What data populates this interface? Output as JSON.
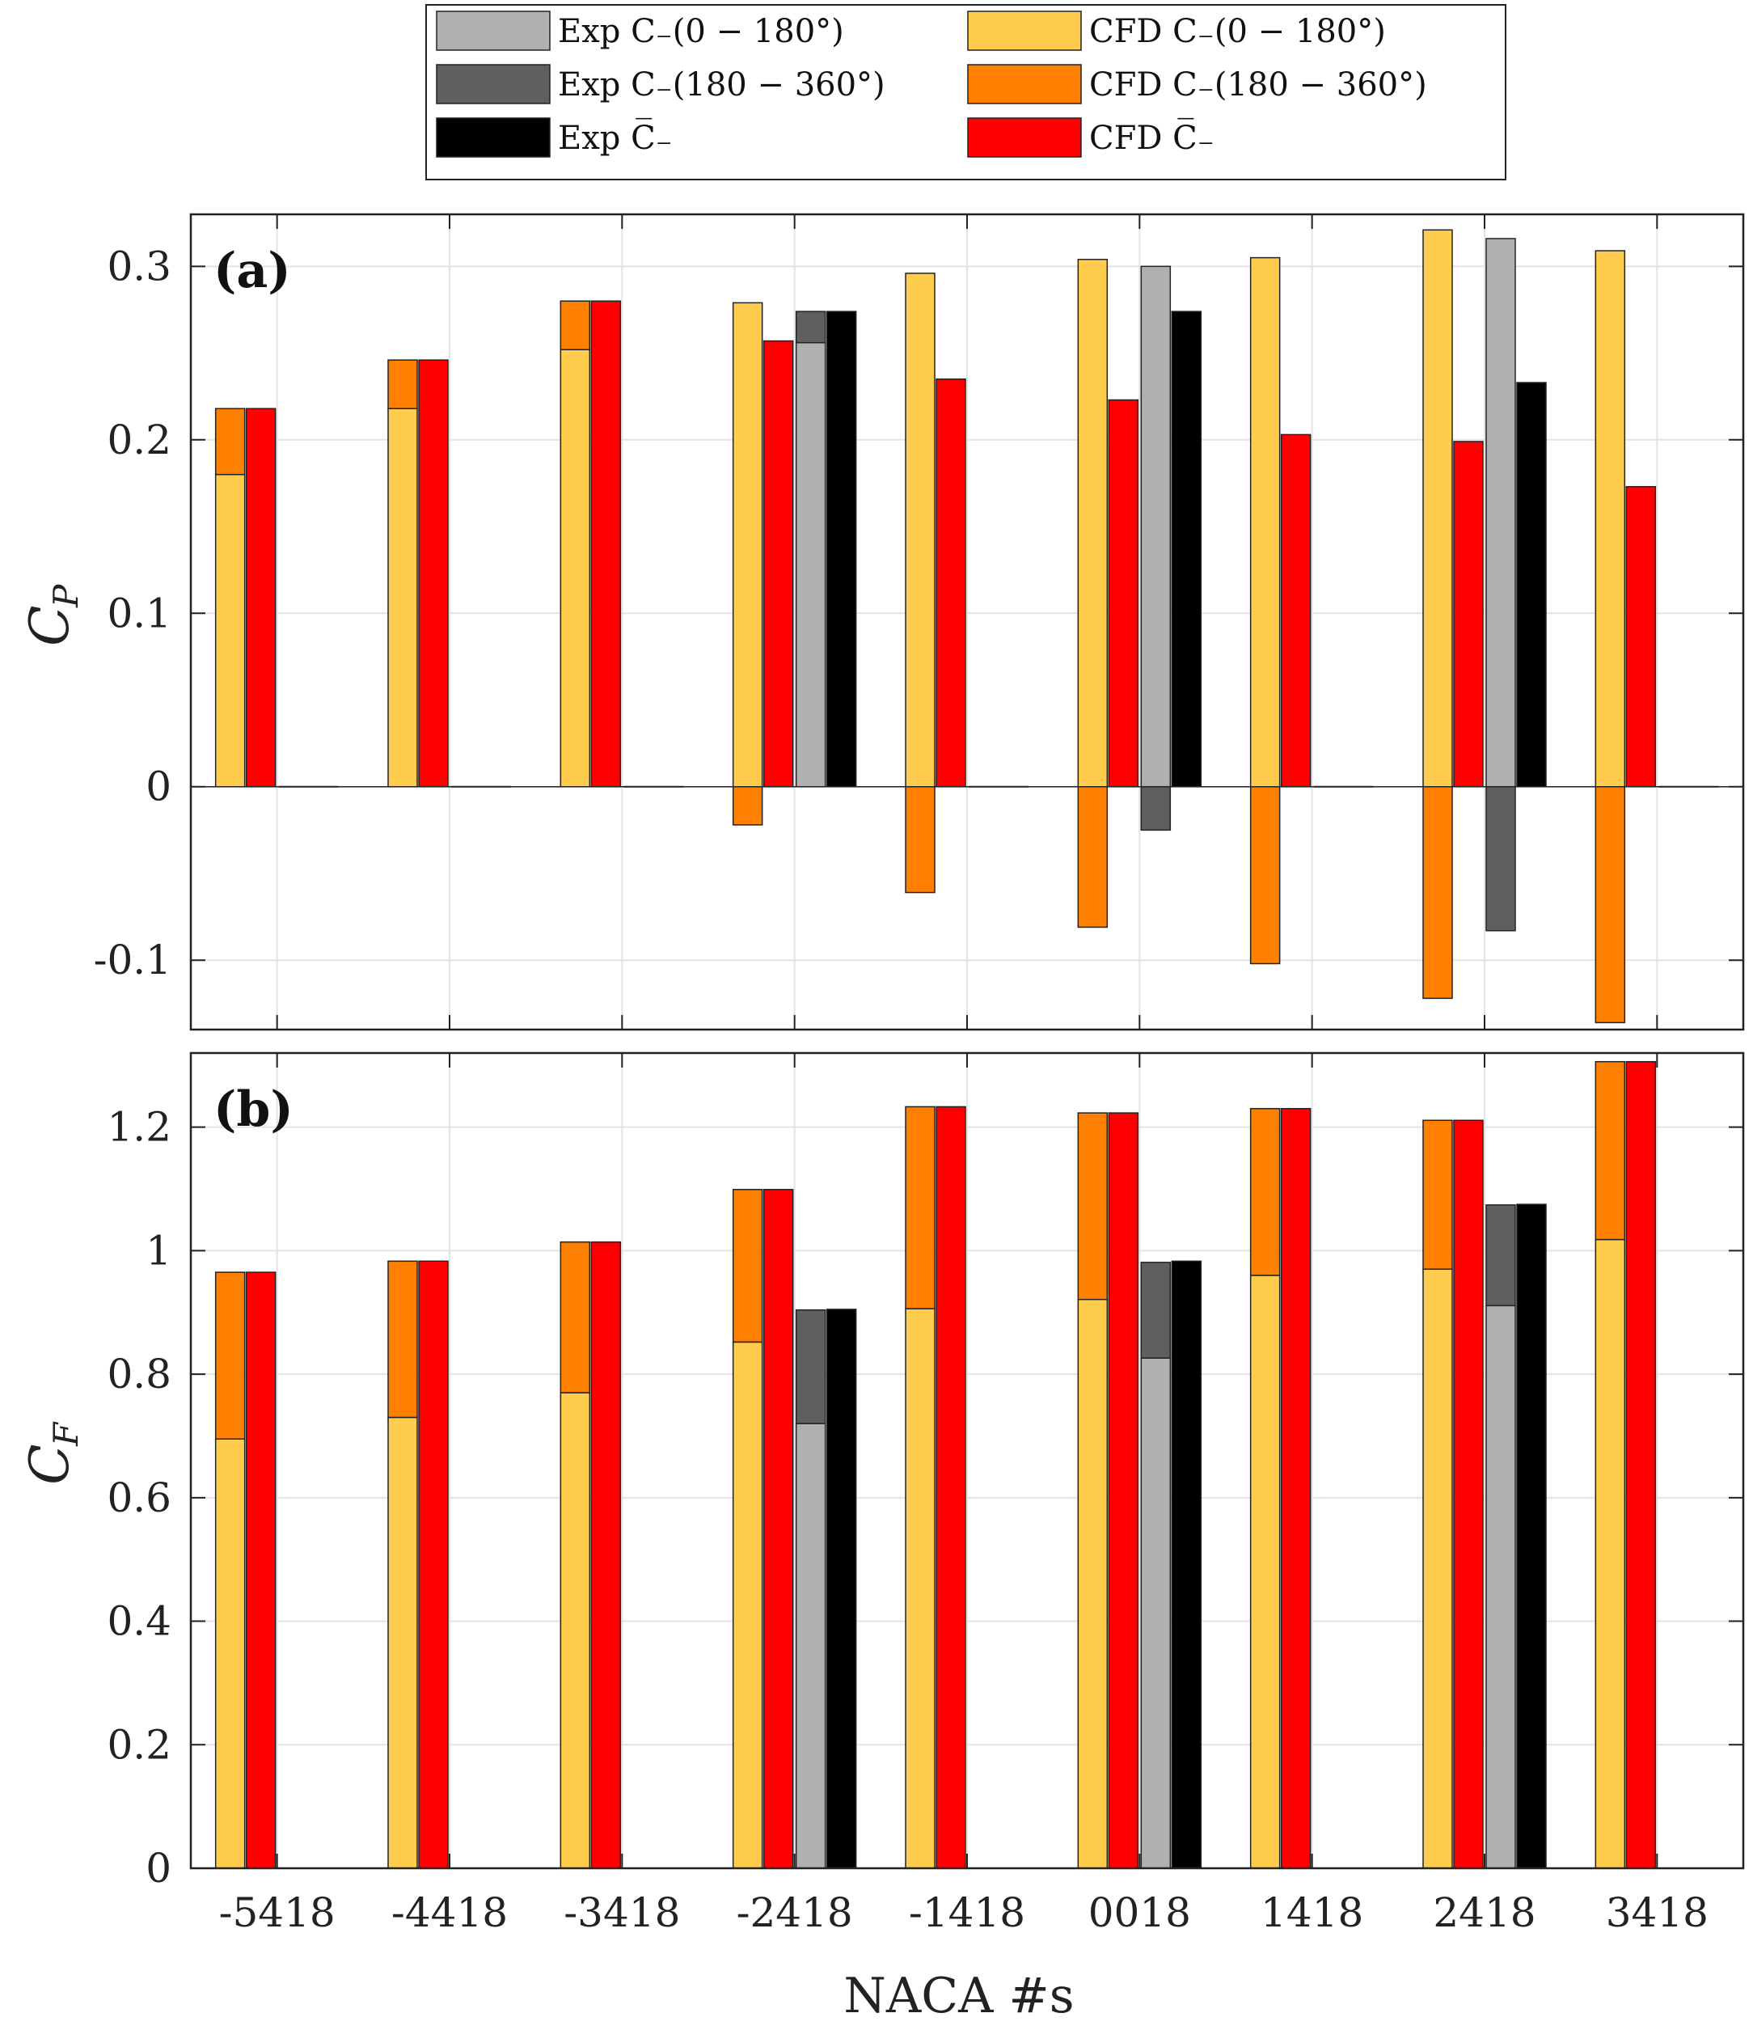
{
  "chart_data": {
    "type": "bar",
    "xlabel": "NACA #s",
    "categories": [
      "-5418",
      "-4418",
      "-3418",
      "-2418",
      "-1418",
      "0018",
      "1418",
      "2418",
      "3418"
    ],
    "legend": [
      {
        "key": "exp_a",
        "label": "Exp C₋(0 − 180°)",
        "color": "#b0b0b0"
      },
      {
        "key": "exp_b",
        "label": "Exp C₋(180 − 360°)",
        "color": "#5f5f5f"
      },
      {
        "key": "exp_m",
        "label": "Exp C̅₋",
        "color": "#000000"
      },
      {
        "key": "cfd_a",
        "label": "CFD C₋(0 − 180°)",
        "color": "#ffcc4d"
      },
      {
        "key": "cfd_b",
        "label": "CFD C₋(180 − 360°)",
        "color": "#ff7f00"
      },
      {
        "key": "cfd_m",
        "label": "CFD C̅₋",
        "color": "#ff0000"
      }
    ],
    "panels": [
      {
        "label": "(a)",
        "ylabel": "C",
        "ylabel_sub": "P",
        "ylim": [
          -0.14,
          0.33
        ],
        "yticks": [
          -0.1,
          0,
          0.1,
          0.2,
          0.3
        ],
        "ytick_labels": [
          "-0.1",
          "0",
          "0.1",
          "0.2",
          "0.3"
        ],
        "series": [
          {
            "key": "cfd_a",
            "values": [
              0.18,
              0.218,
              0.252,
              0.279,
              0.296,
              0.304,
              0.305,
              0.321,
              0.309
            ]
          },
          {
            "key": "cfd_b",
            "values": [
              0.038,
              0.028,
              0.028,
              -0.022,
              -0.061,
              -0.081,
              -0.102,
              -0.122,
              -0.136
            ]
          },
          {
            "key": "cfd_m",
            "values": [
              0.218,
              0.246,
              0.28,
              0.257,
              0.235,
              0.223,
              0.203,
              0.199,
              0.173
            ]
          },
          {
            "key": "exp_a",
            "values": [
              null,
              null,
              null,
              0.256,
              null,
              0.3,
              null,
              0.316,
              null
            ]
          },
          {
            "key": "exp_b",
            "values": [
              null,
              null,
              null,
              0.018,
              null,
              -0.025,
              null,
              -0.083,
              null
            ]
          },
          {
            "key": "exp_m",
            "values": [
              null,
              null,
              null,
              0.274,
              null,
              0.274,
              null,
              0.233,
              null
            ]
          }
        ]
      },
      {
        "label": "(b)",
        "ylabel": "C",
        "ylabel_sub": "F",
        "ylim": [
          0,
          1.32
        ],
        "yticks": [
          0,
          0.2,
          0.4,
          0.6,
          0.8,
          1.0,
          1.2
        ],
        "ytick_labels": [
          "0",
          "0.2",
          "0.4",
          "0.6",
          "0.8",
          "1",
          "1.2"
        ],
        "series": [
          {
            "key": "cfd_a",
            "values": [
              0.695,
              0.73,
              0.77,
              0.852,
              0.906,
              0.921,
              0.96,
              0.97,
              1.018
            ]
          },
          {
            "key": "cfd_b",
            "values": [
              0.27,
              0.253,
              0.244,
              0.247,
              0.327,
              0.302,
              0.27,
              0.241,
              0.288
            ]
          },
          {
            "key": "cfd_m",
            "values": [
              0.965,
              0.983,
              1.014,
              1.099,
              1.233,
              1.223,
              1.23,
              1.211,
              1.306
            ]
          },
          {
            "key": "exp_a",
            "values": [
              null,
              null,
              null,
              0.72,
              null,
              0.826,
              null,
              0.911,
              null
            ]
          },
          {
            "key": "exp_b",
            "values": [
              null,
              null,
              null,
              0.184,
              null,
              0.155,
              null,
              0.163,
              null
            ]
          },
          {
            "key": "exp_m",
            "values": [
              null,
              null,
              null,
              0.905,
              null,
              0.983,
              null,
              1.075,
              null
            ]
          }
        ]
      }
    ],
    "grid": true,
    "legend_position": "top-center"
  }
}
